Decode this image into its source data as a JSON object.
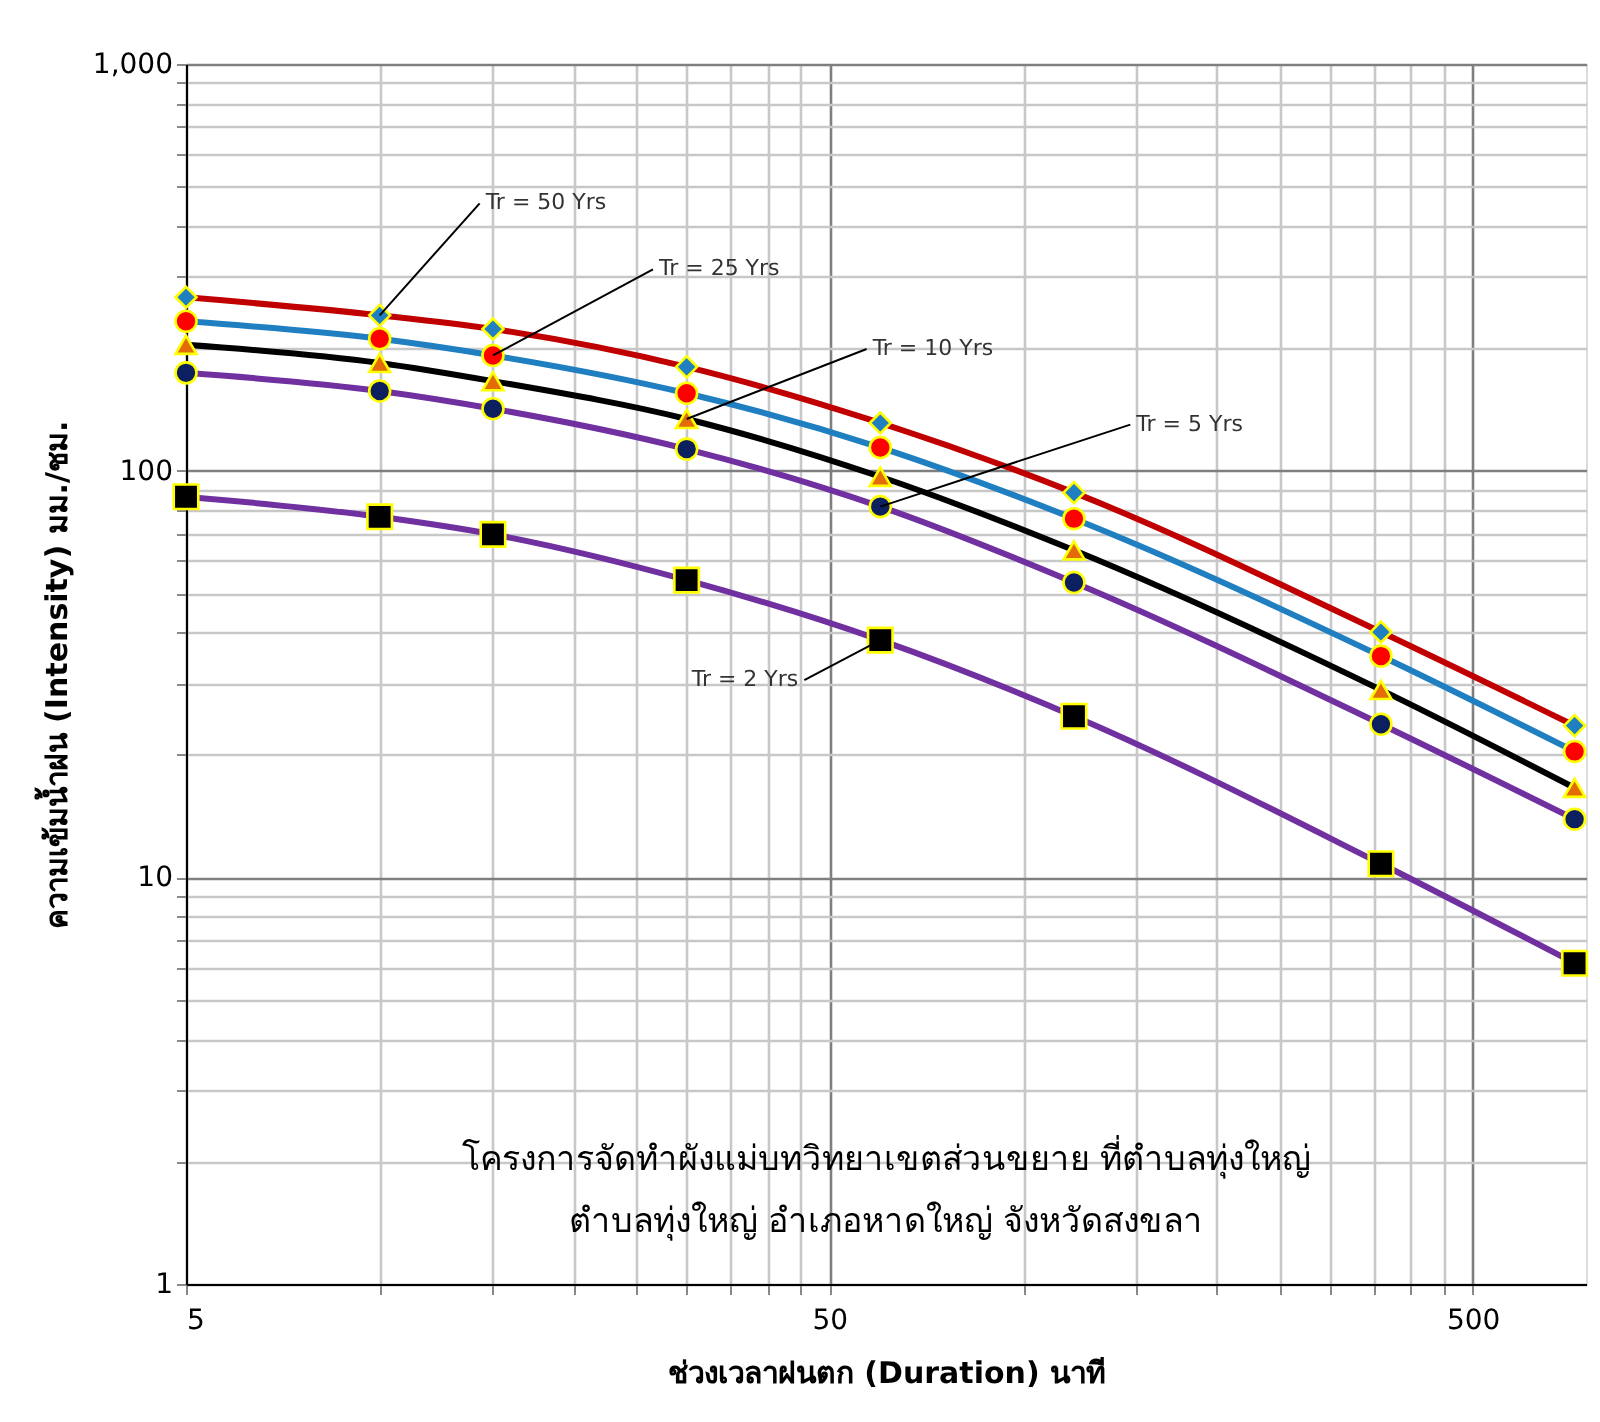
{
  "chart_data": {
    "type": "line",
    "xlabel": "ช่วงเวลาฝนตก (Duration) นาที",
    "ylabel": "ความเข้มน้ำฝน (Intensity) มม./ชม.",
    "x": [
      5,
      10,
      15,
      30,
      60,
      120,
      360,
      720
    ],
    "series": [
      {
        "color": "#c00000",
        "marker": "diamond",
        "colors": [
          "#1f7fc0",
          "#1f7fc0",
          "#1f7fc0",
          "#1f7fc0",
          "#1f7fc0",
          "#1f7fc0",
          "#1f7fc0",
          "#1f7fc0"
        ],
        "values": [
          267,
          241,
          223,
          180,
          131,
          88.3,
          40.1,
          23.6
        ]
      },
      {
        "color": "#1f7fc0",
        "marker": "circle",
        "colors": [
          "#ff0000",
          "#ff0000",
          "#ff0000",
          "#ff0000",
          "#ff0000",
          "#ff0000",
          "#ff0000",
          "#ff0000"
        ],
        "values": [
          233,
          211,
          192,
          155,
          114,
          76.2,
          35,
          20.4
        ]
      },
      {
        "color": "#000000",
        "marker": "triangle",
        "colors": [
          "#e36c09",
          "#e36c09",
          "#e36c09",
          "#e36c09",
          "#e36c09",
          "#e36c09",
          "#e36c09",
          "#e36c09"
        ],
        "values": [
          204,
          184,
          166,
          134,
          96.6,
          63.7,
          28.9,
          16.6
        ]
      },
      {
        "color": "#7030a0",
        "marker": "circle",
        "colors": [
          "#0c2060",
          "#0c2060",
          "#0c2060",
          "#0c2060",
          "#0c2060",
          "#0c2060",
          "#0c2060",
          "#0c2060"
        ],
        "values": [
          174,
          157,
          142,
          113,
          81.6,
          53.1,
          23.8,
          13.9
        ]
      },
      {
        "color": "#7030a0",
        "marker": "square",
        "colors": [
          "#000000",
          "#000000",
          "#000000",
          "#000000",
          "#000000",
          "#000000",
          "#000000",
          "#000000"
        ],
        "values": [
          86.3,
          77,
          69.7,
          53.8,
          38.3,
          24.9,
          10.8,
          6.15
        ]
      }
    ],
    "annotations": [
      {
        "text": "Tr = 50 Yrs",
        "x": 10,
        "y": 241
      },
      {
        "text": "Tr = 25 Yrs",
        "x": 15,
        "y": 192
      },
      {
        "text": "Tr = 10 Yrs",
        "x": 30,
        "y": 134
      },
      {
        "text": "Tr = 5 Yrs",
        "x": 60,
        "y": 81.6
      },
      {
        "text": "Tr = 2 Yrs",
        "x": 60,
        "y": 38.3
      },
      "โครงการจัดทำผังแม่บทวิทยาเขตส่วนขยาย ที่ตำบลทุ่งใหญ่",
      "ตำบลทุ่งใหญ่ อำเภอหาดใหญ่ จังหวัดสงขลา"
    ],
    "log": "xy",
    "xlim": [
      5,
      750
    ],
    "ylim": [
      1,
      1000
    ],
    "xticks": [
      5,
      {
        "value": 10,
        "label": null
      },
      {
        "value": 15,
        "label": null
      },
      {
        "value": 20,
        "label": null
      },
      {
        "value": 25,
        "label": null
      },
      {
        "value": 30,
        "label": null
      },
      {
        "value": 35,
        "label": null
      },
      {
        "value": 40,
        "label": null
      },
      {
        "value": 45,
        "label": null
      },
      50,
      {
        "value": 100,
        "label": null
      },
      {
        "value": 150,
        "label": null
      },
      {
        "value": 200,
        "label": null
      },
      {
        "value": 250,
        "label": null
      },
      {
        "value": 300,
        "label": null
      },
      {
        "value": 350,
        "label": null
      },
      {
        "value": 400,
        "label": null
      },
      {
        "value": 450,
        "label": null
      },
      500
    ],
    "yticks": [
      1,
      {
        "value": 2,
        "label": null
      },
      {
        "value": 3,
        "label": null
      },
      {
        "value": 4,
        "label": null
      },
      {
        "value": 5,
        "label": null
      },
      {
        "value": 6,
        "label": null
      },
      {
        "value": 7,
        "label": null
      },
      {
        "value": 8,
        "label": null
      },
      {
        "value": 9,
        "label": null
      },
      10,
      {
        "value": 20,
        "label": null
      },
      {
        "value": 30,
        "label": null
      },
      {
        "value": 40,
        "label": null
      },
      {
        "value": 50,
        "label": null
      },
      {
        "value": 60,
        "label": null
      },
      {
        "value": 70,
        "label": null
      },
      {
        "value": 80,
        "label": null
      },
      {
        "value": 90,
        "label": null
      },
      100,
      {
        "value": 200,
        "label": null
      },
      {
        "value": 300,
        "label": null
      },
      {
        "value": 400,
        "label": null
      },
      {
        "value": 500,
        "label": null
      },
      {
        "value": 600,
        "label": null
      },
      {
        "value": 700,
        "label": null
      },
      {
        "value": 800,
        "label": null
      },
      {
        "value": 900,
        "label": null
      },
      {
        "value": 1000,
        "label": "1,000"
      }
    ],
    "grid": true,
    "line_style": "solid"
  }
}
